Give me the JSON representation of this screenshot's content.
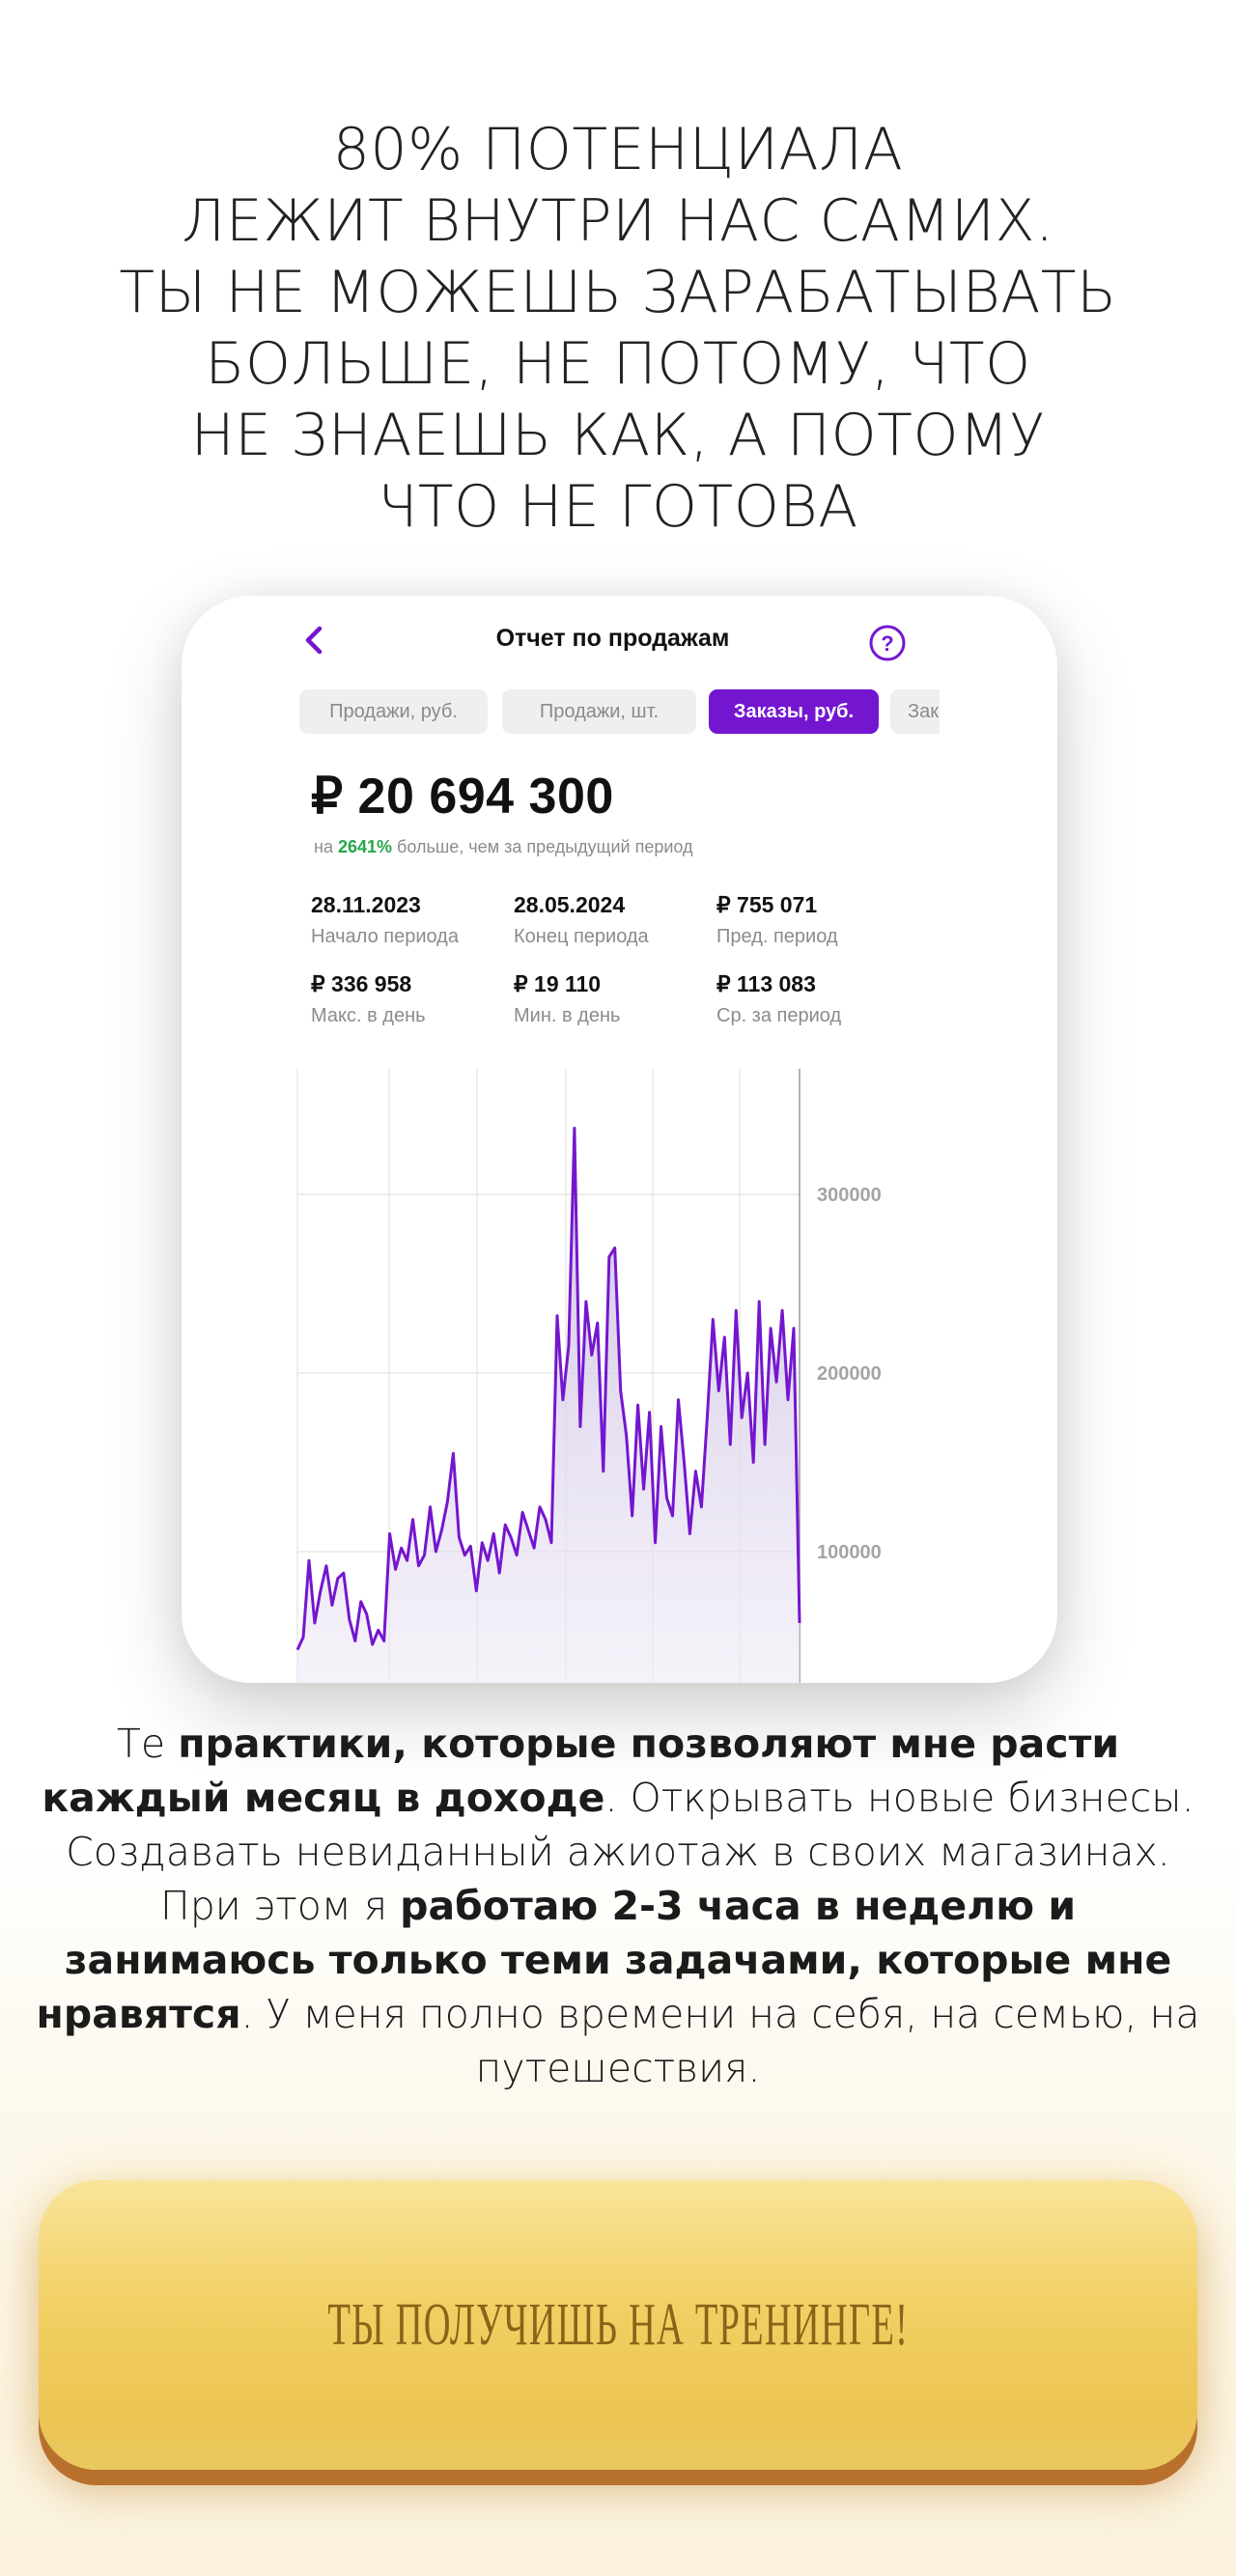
{
  "headline": [
    "80% ПОТЕНЦИАЛА",
    "ЛЕЖИТ ВНУТРИ НАС САМИХ.",
    "ТЫ НЕ МОЖЕШЬ ЗАРАБАТЫВАТЬ",
    "БОЛЬШЕ, НЕ ПОТОМУ, ЧТО",
    "НЕ ЗНАЕШЬ КАК, А ПОТОМУ",
    "ЧТО НЕ ГОТОВА"
  ],
  "screen": {
    "title": "Отчет по продажам",
    "tabs": [
      "Продажи, руб.",
      "Продажи, шт.",
      "Заказы, руб.",
      "Заказы, шт."
    ],
    "active_tab": 2,
    "total": "₽ 20 694 300",
    "compare_prefix": "на",
    "compare_pct": "2641%",
    "compare_suffix": "больше, чем за предыдущий период",
    "stats": [
      {
        "value": "28.11.2023",
        "label": "Начало периода"
      },
      {
        "value": "28.05.2024",
        "label": "Конец периода"
      },
      {
        "value": "₽  755 071",
        "label": "Пред. период"
      },
      {
        "value": "₽ 336 958",
        "label": "Макс. в день"
      },
      {
        "value": "₽ 19 110",
        "label": "Мин. в день"
      },
      {
        "value": "₽ 113 083",
        "label": "Ср. за период"
      }
    ],
    "accent_color": "#7416cf",
    "positive_color": "#26a64a"
  },
  "chart_data": {
    "type": "area",
    "y_ticks": [
      100000,
      200000,
      300000
    ],
    "y_tick_labels": [
      "100000",
      "200000",
      "300000"
    ],
    "ylim": [
      0,
      400000
    ],
    "grid": true,
    "series": [
      {
        "values": [
          45000,
          52000,
          95000,
          60000,
          78000,
          92000,
          70000,
          85000,
          88000,
          62000,
          50000,
          72000,
          65000,
          48000,
          56000,
          50000,
          110000,
          90000,
          102000,
          95000,
          118000,
          92000,
          98000,
          125000,
          100000,
          112000,
          128000,
          155000,
          108000,
          98000,
          103000,
          78000,
          105000,
          95000,
          110000,
          88000,
          115000,
          108000,
          98000,
          122000,
          112000,
          102000,
          125000,
          118000,
          105000,
          232000,
          185000,
          215000,
          337000,
          170000,
          240000,
          210000,
          228000,
          145000,
          265000,
          270000,
          190000,
          165000,
          120000,
          182000,
          135000,
          178000,
          105000,
          170000,
          130000,
          120000,
          185000,
          150000,
          110000,
          145000,
          125000,
          175000,
          230000,
          190000,
          220000,
          160000,
          235000,
          175000,
          200000,
          150000,
          240000,
          160000,
          225000,
          195000,
          235000,
          185000,
          225000,
          60000
        ]
      }
    ]
  },
  "body_parts": [
    {
      "t": "Те ",
      "b": false
    },
    {
      "t": "практики, которые позволяют мне расти каждый месяц в доходе",
      "b": true
    },
    {
      "t": ". Открывать новые бизнесы. Создавать невиданный ажиотаж в своих магазинах. При этом я ",
      "b": false
    },
    {
      "t": "работаю 2-3 часа в неделю и занимаюсь только теми задачами, которые мне нравятся",
      "b": true
    },
    {
      "t": ". У меня полно времени на себя, на семью, на путешествия.",
      "b": false
    }
  ],
  "cta": {
    "label": "ТЫ ПОЛУЧИШЬ НА ТРЕНИНГЕ!"
  }
}
